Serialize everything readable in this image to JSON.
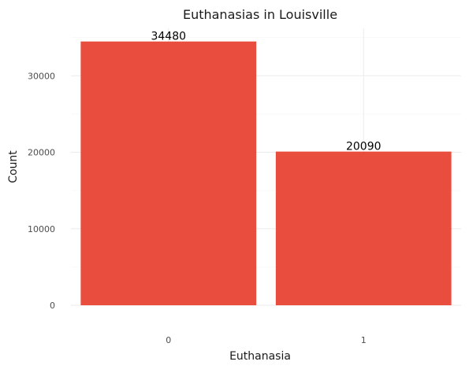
{
  "chart_data": {
    "type": "bar",
    "title": "Euthanasias in Louisville",
    "xlabel": "Euthanasia",
    "ylabel": "Count",
    "categories": [
      "0",
      "1"
    ],
    "values": [
      34480,
      20090
    ],
    "data_labels": [
      "34480",
      "20090"
    ],
    "y_ticks": [
      0,
      10000,
      20000,
      30000
    ],
    "y_tick_labels": [
      "0",
      "10000",
      "20000",
      "30000"
    ],
    "ylim": [
      0,
      36200
    ],
    "grid": true,
    "bar_color": "#E84D3D"
  }
}
